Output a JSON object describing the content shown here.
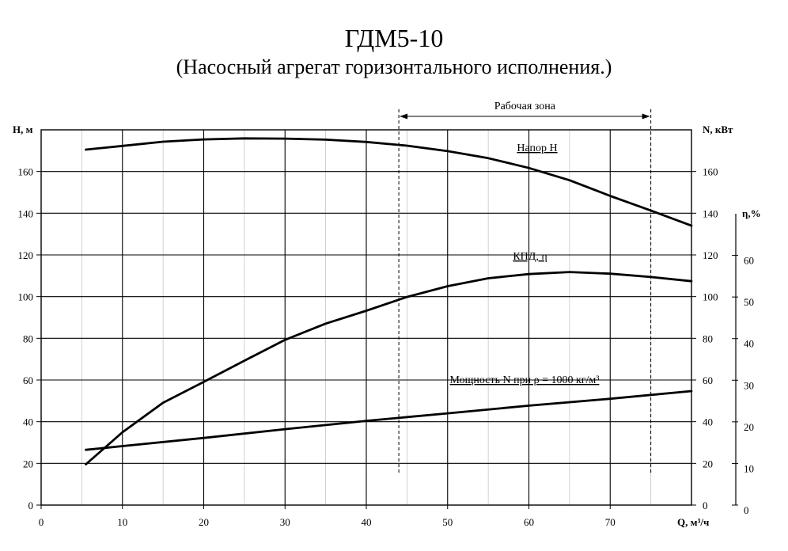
{
  "chart_data": {
    "type": "line",
    "title": "ГДМ5-10",
    "subtitle": "(Насосный агрегат горизонтального исполнения.)",
    "xlabel": "Q, м³/ч",
    "ylabel_left": "Н, м",
    "ylabel_right": "N, кВт",
    "ylabel_eff": "η,%",
    "xlim": [
      0,
      80
    ],
    "ylim": [
      0,
      180
    ],
    "eff_lim": [
      0,
      70
    ],
    "x_ticks": [
      0,
      10,
      20,
      30,
      40,
      50,
      60,
      70
    ],
    "y_ticks": [
      0,
      20,
      40,
      60,
      80,
      100,
      120,
      140,
      160
    ],
    "eff_ticks": [
      0,
      10,
      20,
      30,
      40,
      50,
      60
    ],
    "grid": true,
    "working_zone": {
      "label": "Рабочая зона",
      "x_start": 44,
      "x_end": 75
    },
    "series": [
      {
        "name": "Напор Н",
        "axis": "left",
        "points": [
          [
            5.5,
            170.5
          ],
          [
            10,
            172.3
          ],
          [
            15,
            174.3
          ],
          [
            20,
            175.4
          ],
          [
            25,
            175.9
          ],
          [
            30,
            175.8
          ],
          [
            35,
            175.3
          ],
          [
            40,
            174.2
          ],
          [
            45,
            172.4
          ],
          [
            50,
            169.8
          ],
          [
            55,
            166.4
          ],
          [
            60,
            161.7
          ],
          [
            65,
            155.8
          ],
          [
            70,
            148.3
          ],
          [
            75,
            141.3
          ],
          [
            80,
            134.0
          ]
        ]
      },
      {
        "name": "КПД, η",
        "axis": "eff",
        "points": [
          [
            5.5,
            9.8
          ],
          [
            10,
            17.5
          ],
          [
            15,
            24.6
          ],
          [
            20,
            29.6
          ],
          [
            25,
            34.7
          ],
          [
            30,
            39.7
          ],
          [
            35,
            43.6
          ],
          [
            40,
            46.7
          ],
          [
            45,
            50.0
          ],
          [
            50,
            52.6
          ],
          [
            55,
            54.5
          ],
          [
            60,
            55.5
          ],
          [
            65,
            56.0
          ],
          [
            70,
            55.6
          ],
          [
            75,
            54.8
          ],
          [
            80,
            53.8
          ]
        ]
      },
      {
        "name": "Мощность N при ρ = 1000 кг/м³",
        "axis": "left",
        "points": [
          [
            5.5,
            26.5
          ],
          [
            10,
            28.3
          ],
          [
            20,
            32.2
          ],
          [
            30,
            36.4
          ],
          [
            40,
            40.4
          ],
          [
            50,
            44.0
          ],
          [
            60,
            47.7
          ],
          [
            70,
            51.0
          ],
          [
            80,
            54.7
          ]
        ]
      }
    ]
  }
}
